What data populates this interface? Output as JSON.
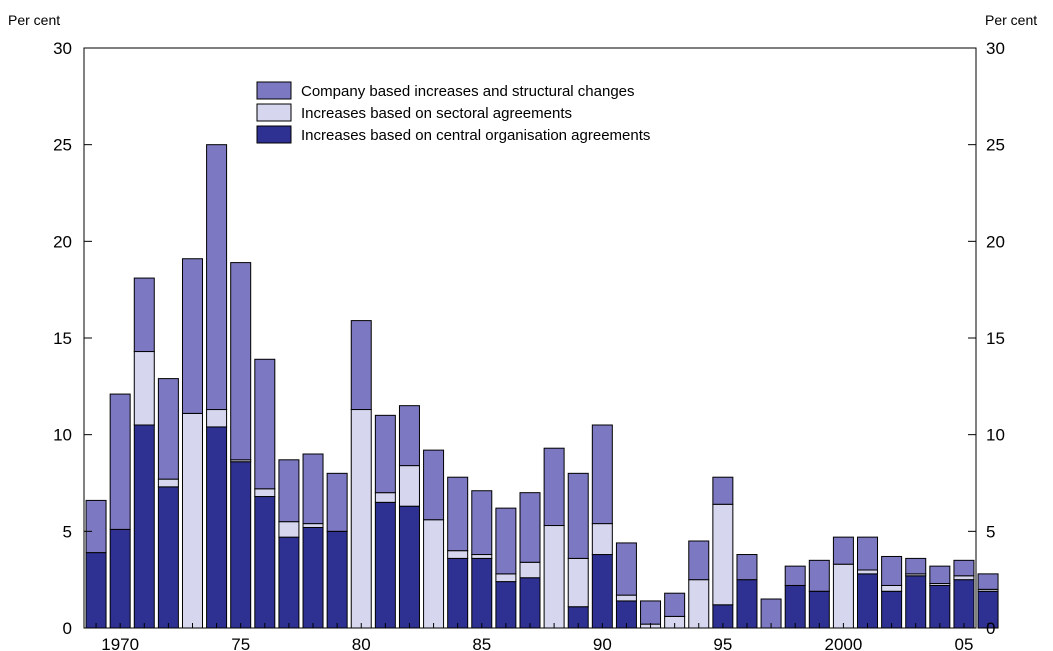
{
  "chart_data": {
    "type": "bar",
    "stacked": true,
    "y_unit_label_left": "Per cent",
    "y_unit_label_right": "Per cent",
    "ylim": [
      0,
      30
    ],
    "yticks": [
      0,
      5,
      10,
      15,
      20,
      25,
      30
    ],
    "xlim": [
      1969,
      2006
    ],
    "xtick_labels": [
      {
        "year": 1970,
        "label": "1970"
      },
      {
        "year": 1975,
        "label": "75"
      },
      {
        "year": 1980,
        "label": "80"
      },
      {
        "year": 1985,
        "label": "85"
      },
      {
        "year": 1990,
        "label": "90"
      },
      {
        "year": 1995,
        "label": "95"
      },
      {
        "year": 2000,
        "label": "2000"
      },
      {
        "year": 2005,
        "label": "05"
      }
    ],
    "legend_position": "top-center",
    "categories": [
      1969,
      1970,
      1971,
      1972,
      1973,
      1974,
      1975,
      1976,
      1977,
      1978,
      1979,
      1980,
      1981,
      1982,
      1983,
      1984,
      1985,
      1986,
      1987,
      1988,
      1989,
      1990,
      1991,
      1992,
      1993,
      1994,
      1995,
      1996,
      1997,
      1998,
      1999,
      2000,
      2001,
      2002,
      2003,
      2004,
      2005,
      2006
    ],
    "series": [
      {
        "name": "Increases based on central organisation agreements",
        "color": "#2e3192",
        "values": [
          3.9,
          5.1,
          10.5,
          7.3,
          0,
          10.4,
          8.6,
          6.8,
          4.7,
          5.2,
          5.0,
          0,
          6.5,
          6.3,
          0,
          3.6,
          3.6,
          2.4,
          2.6,
          0,
          1.1,
          3.8,
          1.4,
          0,
          0,
          0,
          1.2,
          2.5,
          0,
          2.2,
          1.9,
          0,
          2.8,
          1.9,
          2.7,
          2.2,
          2.5,
          1.9
        ]
      },
      {
        "name": "Increases based on sectoral agreements",
        "color": "#d6d6ef",
        "values": [
          0,
          0,
          3.8,
          0.4,
          11.1,
          0.9,
          0.1,
          0.4,
          0.8,
          0.2,
          0,
          11.3,
          0.5,
          2.1,
          5.6,
          0.4,
          0.2,
          0.4,
          0.8,
          5.3,
          2.5,
          1.6,
          0.3,
          0.2,
          0.6,
          2.5,
          5.2,
          0,
          0,
          0,
          0,
          3.3,
          0.2,
          0.3,
          0.1,
          0.1,
          0.2,
          0.1
        ]
      },
      {
        "name": "Company based increases and structural changes",
        "color": "#7c78c1",
        "values": [
          2.7,
          7.0,
          3.8,
          5.2,
          8.0,
          13.7,
          10.2,
          6.7,
          3.2,
          3.6,
          3.0,
          4.6,
          4.0,
          3.1,
          3.6,
          3.8,
          3.3,
          3.4,
          3.6,
          4.0,
          4.4,
          5.1,
          2.7,
          1.2,
          1.2,
          2.0,
          1.4,
          1.3,
          1.5,
          1.0,
          1.6,
          1.4,
          1.7,
          1.5,
          0.8,
          0.9,
          0.8,
          0.8
        ]
      }
    ],
    "legend_order": [
      2,
      1,
      0
    ]
  }
}
